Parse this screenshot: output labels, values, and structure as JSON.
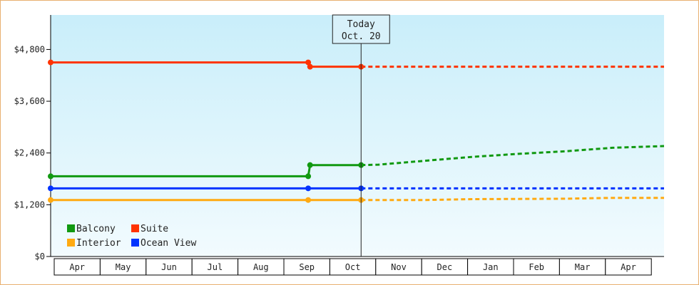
{
  "chart_data": {
    "type": "line",
    "title": "",
    "xlabel": "",
    "ylabel": "",
    "y_ticks": [
      {
        "value": 0,
        "label": "$0"
      },
      {
        "value": 1200,
        "label": "$1,200"
      },
      {
        "value": 2400,
        "label": "$2,400"
      },
      {
        "value": 3600,
        "label": "$3,600"
      },
      {
        "value": 4800,
        "label": "$4,800"
      }
    ],
    "ylim": [
      0,
      5600
    ],
    "x_months": [
      "Apr",
      "May",
      "Jun",
      "Jul",
      "Aug",
      "Sep",
      "Oct",
      "Nov",
      "Dec",
      "Jan",
      "Feb",
      "Mar",
      "Apr"
    ],
    "xlim": [
      0,
      13.1
    ],
    "today": {
      "label": "Today",
      "date": "Oct. 20",
      "x": 6.63
    },
    "grid": false,
    "legend_position": "bottom-left",
    "series": [
      {
        "name": "Balcony",
        "color": "#119911",
        "actual": [
          [
            0,
            1860
          ],
          [
            5.5,
            1860
          ],
          [
            5.54,
            2120
          ],
          [
            6.63,
            2120
          ]
        ],
        "markers": [
          [
            0,
            1860
          ],
          [
            5.5,
            1860
          ],
          [
            5.54,
            2120
          ],
          [
            6.63,
            2120
          ]
        ],
        "forecast": [
          [
            6.63,
            2120
          ],
          [
            7.0,
            2130
          ],
          [
            8.0,
            2220
          ],
          [
            9.0,
            2310
          ],
          [
            10.0,
            2380
          ],
          [
            11.0,
            2440
          ],
          [
            12.0,
            2520
          ],
          [
            13.1,
            2560
          ]
        ]
      },
      {
        "name": "Suite",
        "color": "#ff3300",
        "actual": [
          [
            0,
            4500
          ],
          [
            5.5,
            4500
          ],
          [
            5.54,
            4400
          ],
          [
            6.63,
            4400
          ]
        ],
        "markers": [
          [
            0,
            4500
          ],
          [
            5.5,
            4500
          ],
          [
            5.54,
            4400
          ],
          [
            6.63,
            4400
          ]
        ],
        "forecast": [
          [
            6.63,
            4400
          ],
          [
            13.1,
            4400
          ]
        ]
      },
      {
        "name": "Interior",
        "color": "#ffaa11",
        "actual": [
          [
            0,
            1310
          ],
          [
            5.5,
            1310
          ],
          [
            6.63,
            1310
          ]
        ],
        "markers": [
          [
            0,
            1310
          ],
          [
            5.5,
            1310
          ],
          [
            6.63,
            1310
          ]
        ],
        "forecast": [
          [
            6.63,
            1310
          ],
          [
            8.0,
            1310
          ],
          [
            9.0,
            1330
          ],
          [
            11.0,
            1340
          ],
          [
            12.0,
            1360
          ],
          [
            13.1,
            1360
          ]
        ]
      },
      {
        "name": "Ocean View",
        "color": "#0033ff",
        "actual": [
          [
            0,
            1580
          ],
          [
            5.5,
            1580
          ],
          [
            6.63,
            1580
          ]
        ],
        "markers": [
          [
            0,
            1580
          ],
          [
            5.5,
            1580
          ],
          [
            6.63,
            1580
          ]
        ],
        "forecast": [
          [
            6.63,
            1580
          ],
          [
            13.1,
            1580
          ]
        ]
      }
    ]
  }
}
